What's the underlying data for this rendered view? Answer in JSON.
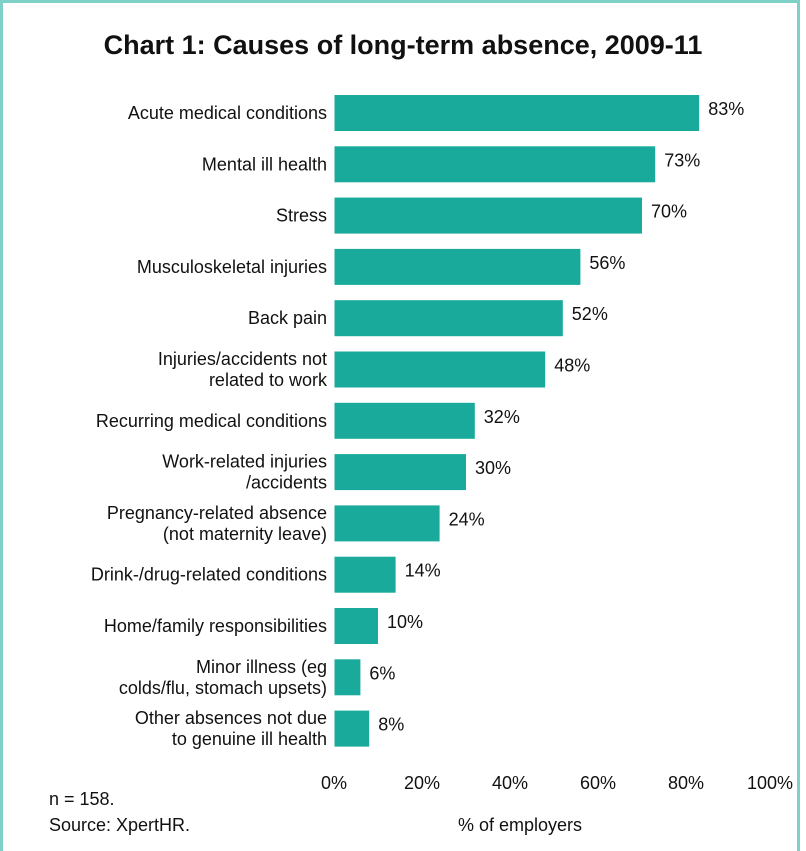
{
  "chart_data": {
    "type": "bar",
    "orientation": "horizontal",
    "title": "Chart 1: Causes of long-term absence, 2009-11",
    "categories": [
      [
        "Acute medical conditions"
      ],
      [
        "Mental ill health"
      ],
      [
        "Stress"
      ],
      [
        "Musculoskeletal injuries"
      ],
      [
        "Back pain"
      ],
      [
        "Injuries/accidents not",
        "related to work"
      ],
      [
        "Recurring medical conditions"
      ],
      [
        "Work-related injuries",
        "/accidents"
      ],
      [
        "Pregnancy-related absence",
        "(not maternity leave)"
      ],
      [
        "Drink-/drug-related conditions"
      ],
      [
        "Home/family responsibilities"
      ],
      [
        "Minor illness (eg",
        "colds/flu, stomach upsets)"
      ],
      [
        "Other absences not due",
        "to genuine ill health"
      ]
    ],
    "values": [
      83,
      73,
      70,
      56,
      52,
      48,
      32,
      30,
      24,
      14,
      10,
      6,
      8
    ],
    "value_labels": [
      "83%",
      "73%",
      "70%",
      "56%",
      "52%",
      "48%",
      "32%",
      "30%",
      "24%",
      "14%",
      "10%",
      "6%",
      "8%"
    ],
    "xlim": [
      0,
      100
    ],
    "xticks": [
      "0%",
      "20%",
      "40%",
      "60%",
      "80%",
      "100%"
    ],
    "xlabel": "% of employers",
    "ylabel": "",
    "bar_color": "#1aaa9b",
    "grid": false,
    "legend": "none"
  },
  "notes": {
    "n": "n = 158.",
    "source": "Source: XpertHR."
  }
}
